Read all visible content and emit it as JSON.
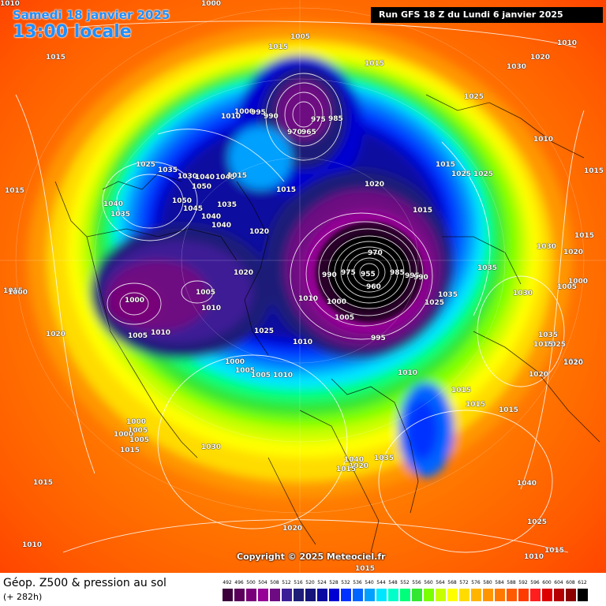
{
  "header": {
    "date": "Samedi 18 janvier 2025",
    "time": "13:00 locale",
    "run": "Run GFS 18 Z du Lundi 6 janvier 2025"
  },
  "copyright": "Copyright © 2025 Meteociel.fr",
  "footer": {
    "field_title": "Géop. Z500 & pression au sol",
    "lead_time": "(+ 282h)"
  },
  "legend": {
    "unit_values": [
      "492",
      "496",
      "500",
      "504",
      "508",
      "512",
      "516",
      "520",
      "524",
      "528",
      "532",
      "536",
      "540",
      "544",
      "548",
      "552",
      "556",
      "560",
      "564",
      "568",
      "572",
      "576",
      "580",
      "584",
      "588",
      "592",
      "596",
      "600",
      "604",
      "608",
      "612"
    ],
    "colors": [
      "#3c003c",
      "#5a005a",
      "#780078",
      "#960096",
      "#6e0a82",
      "#3c1e96",
      "#1e1e78",
      "#14147a",
      "#0a0aa0",
      "#0000d2",
      "#0032ff",
      "#0064ff",
      "#00a0ff",
      "#00e6ff",
      "#00ffc8",
      "#00ff7a",
      "#32e632",
      "#7aff00",
      "#c8ff00",
      "#ffff00",
      "#ffdc00",
      "#ffb400",
      "#ff9600",
      "#ff7800",
      "#ff5a00",
      "#ff3c00",
      "#ff1e1e",
      "#dc0000",
      "#b40000",
      "#8c0000",
      "#000000"
    ]
  },
  "isobar_labels": [
    {
      "t": "1000"
    },
    {
      "t": "1005"
    },
    {
      "t": "1015"
    },
    {
      "t": "1015"
    },
    {
      "t": "1010"
    },
    {
      "t": "1015"
    },
    {
      "t": "1020"
    },
    {
      "t": "1030"
    },
    {
      "t": "1025"
    },
    {
      "t": "1010"
    },
    {
      "t": "1015"
    },
    {
      "t": "1015"
    },
    {
      "t": "975"
    },
    {
      "t": "985"
    },
    {
      "t": "970"
    },
    {
      "t": "965"
    },
    {
      "t": "1010"
    },
    {
      "t": "1000"
    },
    {
      "t": "995"
    },
    {
      "t": "990"
    },
    {
      "t": "1025"
    },
    {
      "t": "1035"
    },
    {
      "t": "1030"
    },
    {
      "t": "1040"
    },
    {
      "t": "1050"
    },
    {
      "t": "1045"
    },
    {
      "t": "1015"
    },
    {
      "t": "1015"
    },
    {
      "t": "1040"
    },
    {
      "t": "1035"
    },
    {
      "t": "1050"
    },
    {
      "t": "1045"
    },
    {
      "t": "1040"
    },
    {
      "t": "1035"
    },
    {
      "t": "1040"
    },
    {
      "t": "1020"
    },
    {
      "t": "1020"
    },
    {
      "t": "1025"
    },
    {
      "t": "1025"
    },
    {
      "t": "1015"
    },
    {
      "t": "970"
    },
    {
      "t": "990"
    },
    {
      "t": "975"
    },
    {
      "t": "955"
    },
    {
      "t": "960"
    },
    {
      "t": "985"
    },
    {
      "t": "995"
    },
    {
      "t": "990"
    },
    {
      "t": "1010"
    },
    {
      "t": "1000"
    },
    {
      "t": "1005"
    },
    {
      "t": "995"
    },
    {
      "t": "1035"
    },
    {
      "t": "1035"
    },
    {
      "t": "1025"
    },
    {
      "t": "1015"
    },
    {
      "t": "1030"
    },
    {
      "t": "1020"
    },
    {
      "t": "1015"
    },
    {
      "t": "1005"
    },
    {
      "t": "1000"
    },
    {
      "t": "1030"
    },
    {
      "t": "1015"
    },
    {
      "t": "1020"
    },
    {
      "t": "1000"
    },
    {
      "t": "1005"
    },
    {
      "t": "1010"
    },
    {
      "t": "1005"
    },
    {
      "t": "1010"
    },
    {
      "t": "1020"
    },
    {
      "t": "1025"
    },
    {
      "t": "1010"
    },
    {
      "t": "1000"
    },
    {
      "t": "1005"
    },
    {
      "t": "1005"
    },
    {
      "t": "1010"
    },
    {
      "t": "1010"
    },
    {
      "t": "1035"
    },
    {
      "t": "1025"
    },
    {
      "t": "1020"
    },
    {
      "t": "1015"
    },
    {
      "t": "1015"
    },
    {
      "t": "1015"
    },
    {
      "t": "1010"
    },
    {
      "t": "1000"
    },
    {
      "t": "1000"
    },
    {
      "t": "1005"
    },
    {
      "t": "1015"
    },
    {
      "t": "1030"
    },
    {
      "t": "1020"
    },
    {
      "t": "1015"
    },
    {
      "t": "1040"
    },
    {
      "t": "1035"
    },
    {
      "t": "1040"
    },
    {
      "t": "1015"
    },
    {
      "t": "1020"
    },
    {
      "t": "1025"
    },
    {
      "t": "1010"
    },
    {
      "t": "1015"
    },
    {
      "t": "1010"
    },
    {
      "t": "1005"
    },
    {
      "t": "1000"
    },
    {
      "t": "1015"
    },
    {
      "t": "1020"
    },
    {
      "t": "1015"
    },
    {
      "t": "1010"
    },
    {
      "t": "1010"
    }
  ]
}
